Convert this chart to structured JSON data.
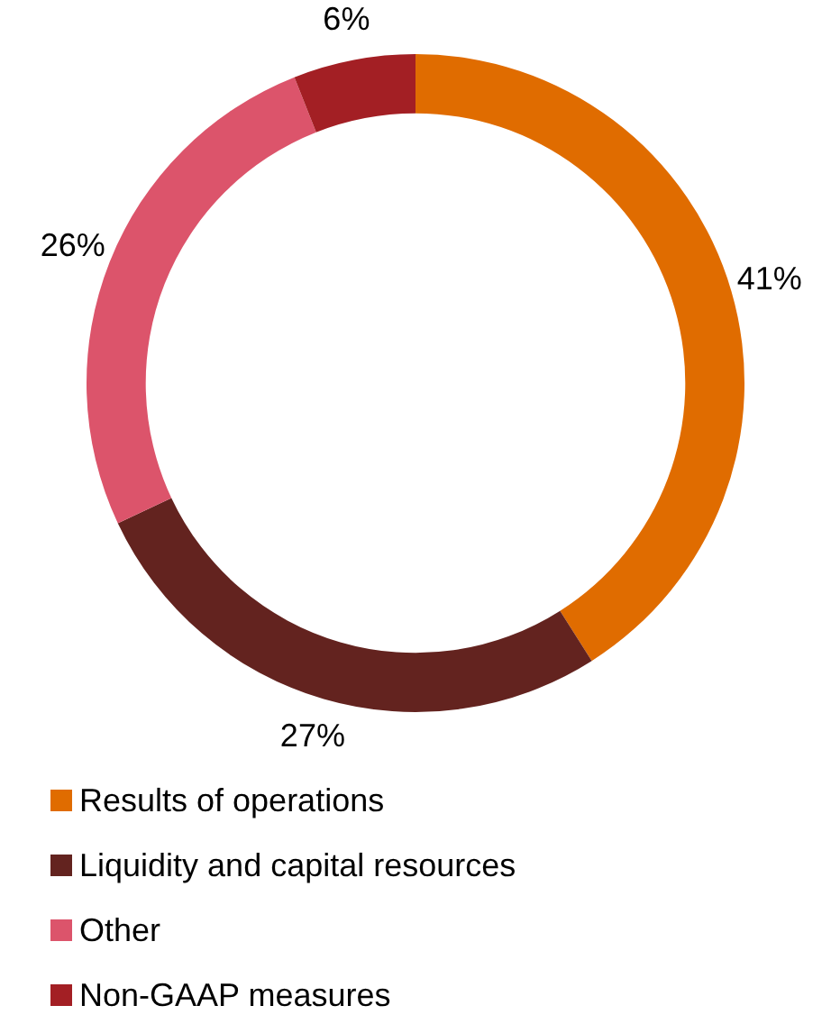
{
  "chart_data": {
    "type": "donut",
    "categories": [
      "Results of operations",
      "Liquidity and capital resources",
      "Other",
      "Non-GAAP measures"
    ],
    "values": [
      41,
      27,
      26,
      6
    ],
    "colors": [
      "#e06c00",
      "#63231f",
      "#dc546b",
      "#a31f24"
    ],
    "value_labels": [
      "41%",
      "27%",
      "26%",
      "6%"
    ],
    "legend": "bottom"
  }
}
